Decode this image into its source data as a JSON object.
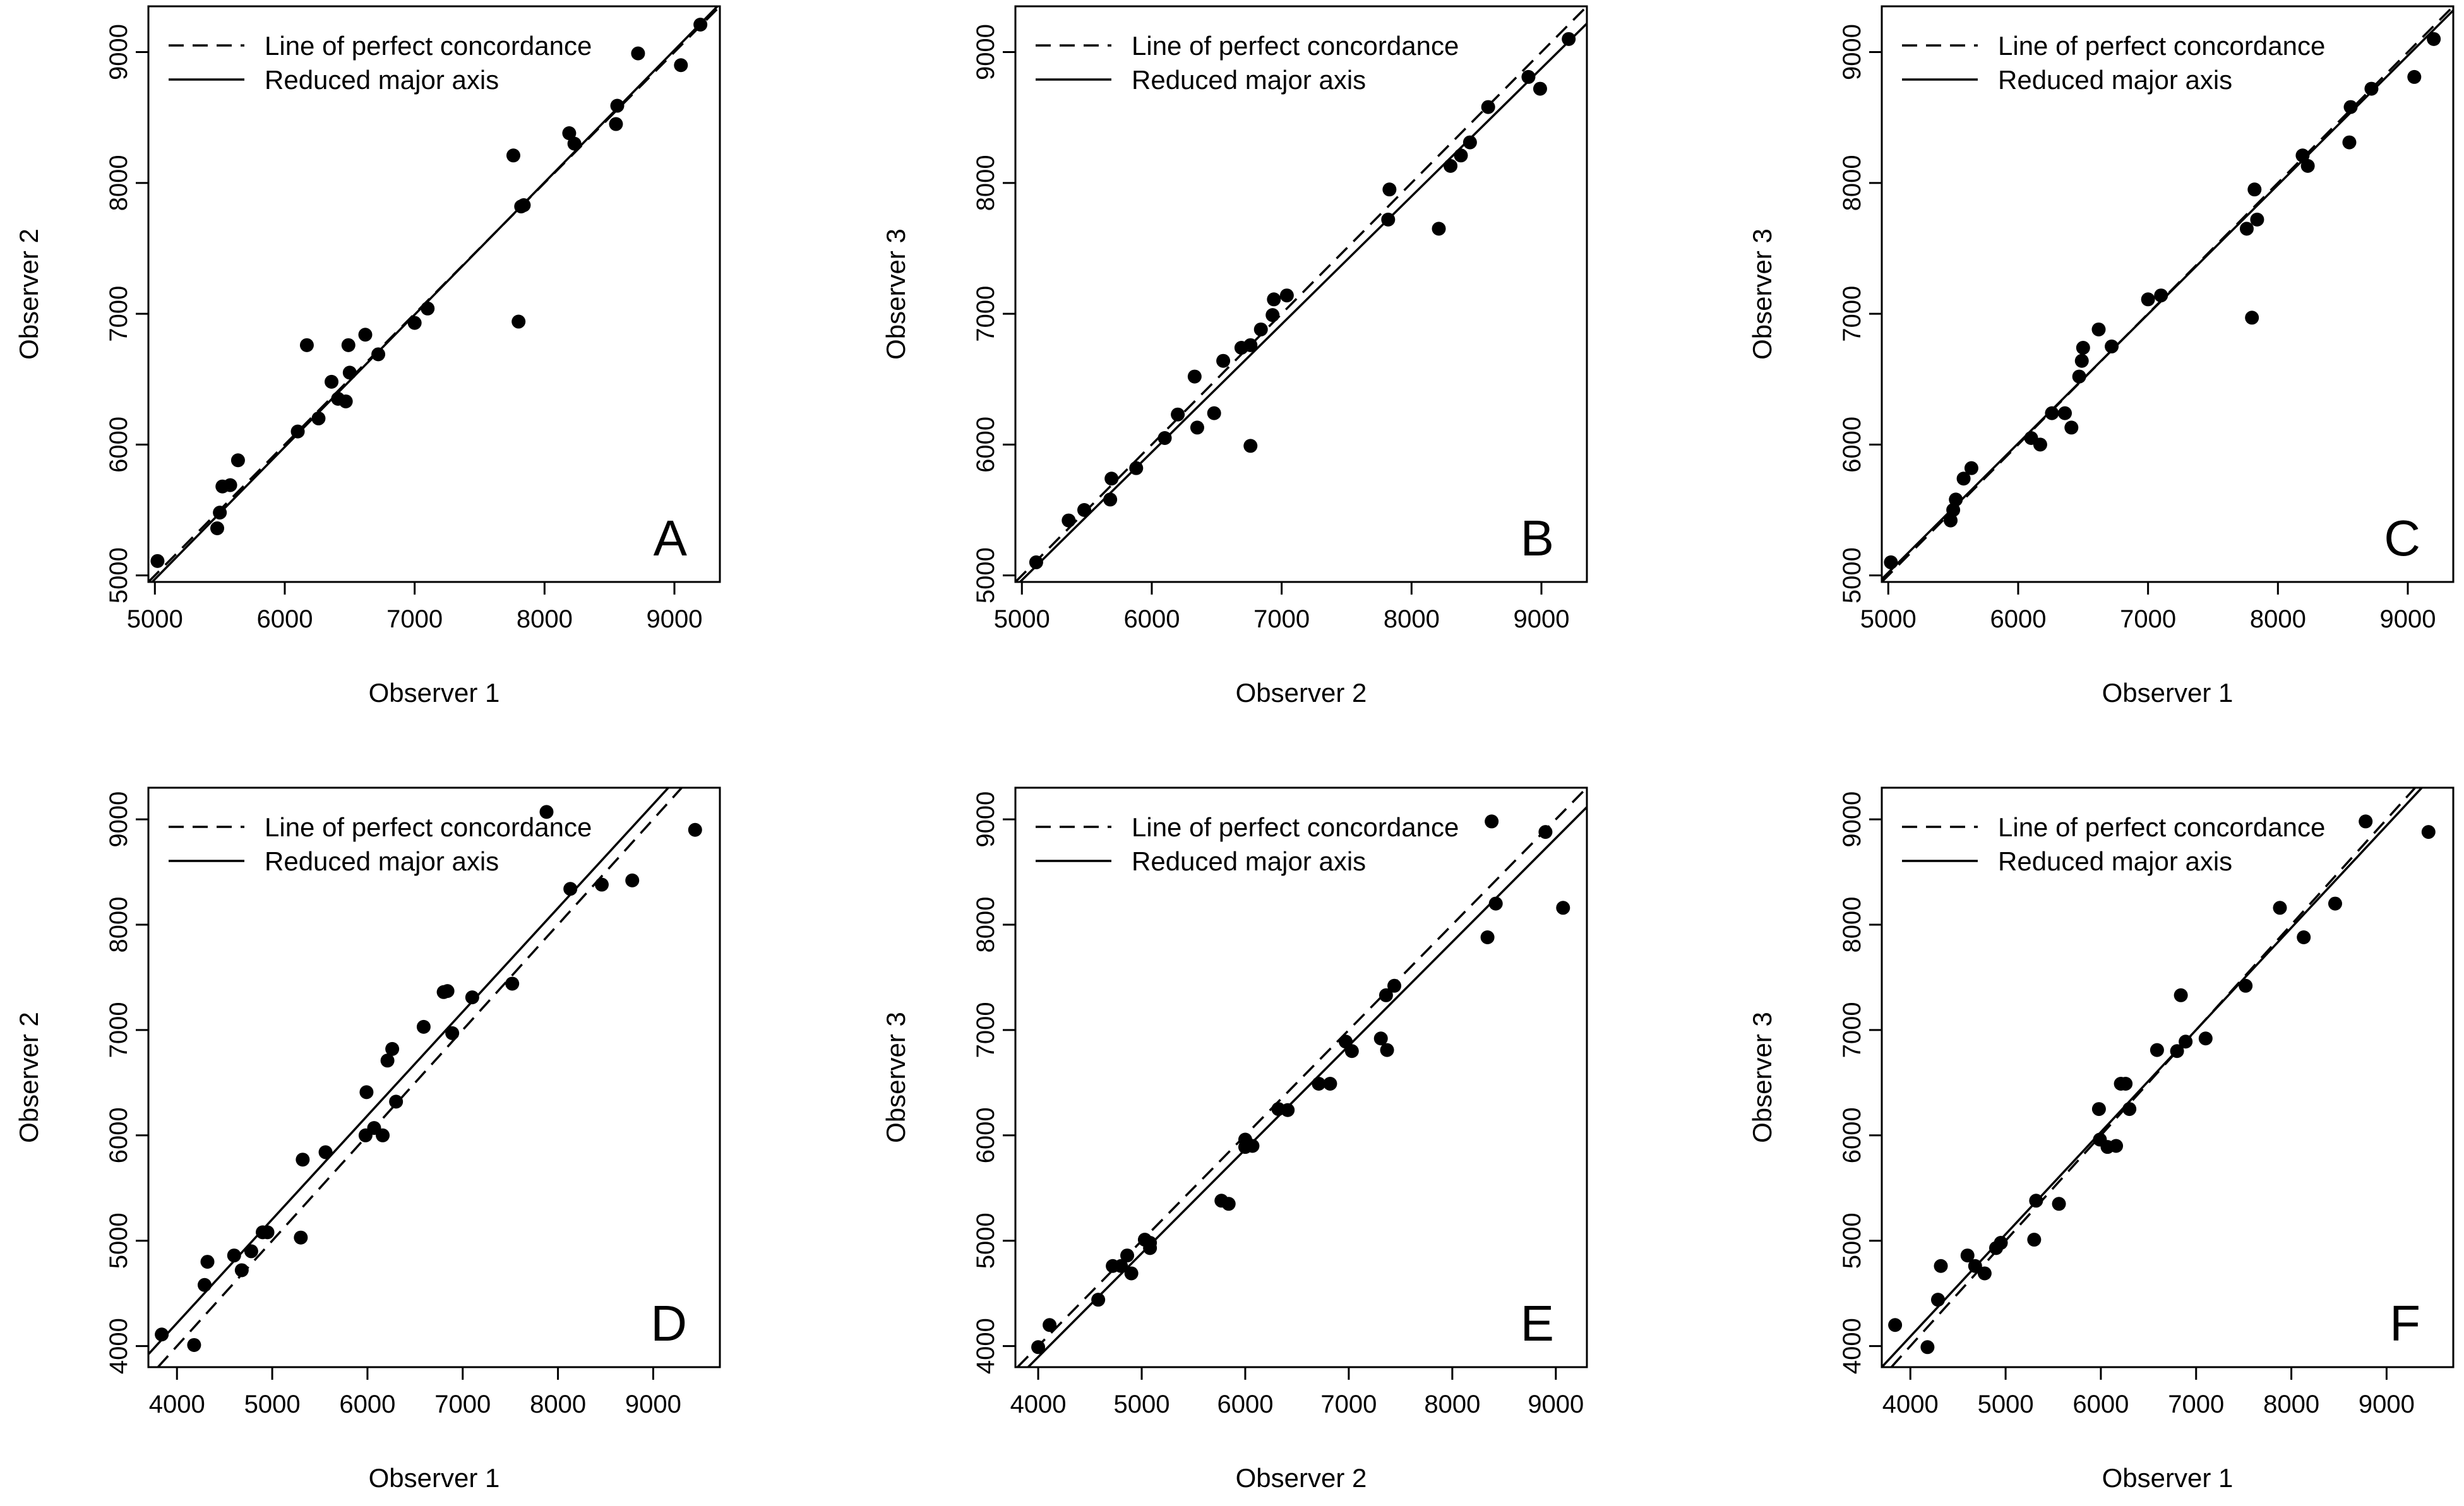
{
  "chart_data": [
    {
      "type": "scatter",
      "panel_label": "A",
      "xlabel": "Observer 1",
      "ylabel": "Observer 2",
      "xlim": [
        4950,
        9350
      ],
      "ylim": [
        4950,
        9350
      ],
      "xticks": [
        5000,
        6000,
        7000,
        8000,
        9000
      ],
      "yticks": [
        5000,
        6000,
        7000,
        8000,
        9000
      ],
      "legend": {
        "position": "top-left",
        "entries": [
          "Line of perfect concordance",
          "Reduced major axis"
        ]
      },
      "reduced_major_axis": {
        "intercept": -84,
        "slope": 1.011
      },
      "points": {
        "x": [
          5020,
          5480,
          5500,
          5520,
          5580,
          5640,
          6100,
          6170,
          6260,
          6360,
          6410,
          6470,
          6490,
          6500,
          6620,
          6720,
          7000,
          7100,
          7760,
          7800,
          7820,
          7840,
          8190,
          8230,
          8550,
          8560,
          8720,
          9050,
          9200
        ],
        "y": [
          5110,
          5360,
          5480,
          5680,
          5690,
          5880,
          6100,
          6760,
          6200,
          6480,
          6350,
          6330,
          6760,
          6550,
          6840,
          6690,
          6930,
          7040,
          8210,
          6940,
          7820,
          7830,
          8380,
          8300,
          8450,
          8590,
          8990,
          8900,
          9210
        ]
      }
    },
    {
      "type": "scatter",
      "panel_label": "B",
      "xlabel": "Observer 2",
      "ylabel": "Observer 3",
      "xlim": [
        4950,
        9350
      ],
      "ylim": [
        4950,
        9350
      ],
      "xticks": [
        5000,
        6000,
        7000,
        8000,
        9000
      ],
      "yticks": [
        5000,
        6000,
        7000,
        8000,
        9000
      ],
      "legend": {
        "position": "top-left",
        "entries": [
          "Line of perfect concordance",
          "Reduced major axis"
        ]
      },
      "reduced_major_axis": {
        "intercept": 74,
        "slope": 0.978
      },
      "points": {
        "x": [
          5110,
          5360,
          5480,
          5680,
          5690,
          5880,
          6100,
          6200,
          6330,
          6350,
          6480,
          6550,
          6690,
          6760,
          6760,
          6840,
          6930,
          6940,
          7040,
          7820,
          7830,
          8210,
          8300,
          8380,
          8450,
          8590,
          8900,
          8990,
          9210
        ],
        "y": [
          5100,
          5420,
          5500,
          5580,
          5740,
          5820,
          6050,
          6230,
          6520,
          6130,
          6240,
          6640,
          6740,
          5990,
          6760,
          6880,
          6990,
          7110,
          7140,
          7720,
          7950,
          7650,
          8130,
          8210,
          8310,
          8580,
          8810,
          8720,
          9100
        ]
      }
    },
    {
      "type": "scatter",
      "panel_label": "C",
      "xlabel": "Observer 1",
      "ylabel": "Observer 3",
      "xlim": [
        4950,
        9350
      ],
      "ylim": [
        4950,
        9350
      ],
      "xticks": [
        5000,
        6000,
        7000,
        8000,
        9000
      ],
      "yticks": [
        5000,
        6000,
        7000,
        8000,
        9000
      ],
      "legend": {
        "position": "top-left",
        "entries": [
          "Line of perfect concordance",
          "Reduced major axis"
        ]
      },
      "reduced_major_axis": {
        "intercept": 81,
        "slope": 0.988
      },
      "points": {
        "x": [
          5020,
          5480,
          5500,
          5520,
          5580,
          5640,
          6100,
          6170,
          6260,
          6360,
          6410,
          6470,
          6490,
          6500,
          6620,
          6720,
          7000,
          7100,
          7760,
          7800,
          7820,
          7840,
          8190,
          8230,
          8550,
          8560,
          8720,
          9050,
          9200
        ],
        "y": [
          5100,
          5420,
          5500,
          5580,
          5740,
          5820,
          6050,
          6000,
          6240,
          6240,
          6130,
          6520,
          6640,
          6740,
          6880,
          6750,
          7110,
          7140,
          7650,
          6970,
          7950,
          7720,
          8210,
          8130,
          8310,
          8580,
          8720,
          8810,
          9100
        ]
      }
    },
    {
      "type": "scatter",
      "panel_label": "D",
      "xlabel": "Observer 1",
      "ylabel": "Observer 2",
      "xlim": [
        3700,
        9700
      ],
      "ylim": [
        3800,
        9300
      ],
      "xticks": [
        4000,
        5000,
        6000,
        7000,
        8000,
        9000
      ],
      "yticks": [
        4000,
        5000,
        6000,
        7000,
        8000,
        9000
      ],
      "legend": {
        "position": "top-left",
        "entries": [
          "Line of perfect concordance",
          "Reduced major axis"
        ]
      },
      "reduced_major_axis": {
        "intercept": 278,
        "slope": 0.985
      },
      "points": {
        "x": [
          3840,
          4180,
          4290,
          4320,
          4600,
          4680,
          4780,
          4900,
          4950,
          5300,
          5320,
          5560,
          5980,
          5990,
          6070,
          6160,
          6210,
          6260,
          6300,
          6590,
          6800,
          6840,
          6890,
          7100,
          7520,
          7880,
          8130,
          8460,
          8780,
          9440
        ],
        "y": [
          4110,
          4010,
          4580,
          4800,
          4860,
          4720,
          4900,
          5080,
          5080,
          5030,
          5770,
          5840,
          6000,
          6410,
          6070,
          6000,
          6710,
          6820,
          6320,
          7030,
          7360,
          7370,
          6970,
          7310,
          7440,
          9070,
          8340,
          8380,
          8420,
          8900
        ]
      }
    },
    {
      "type": "scatter",
      "panel_label": "E",
      "xlabel": "Observer 2",
      "ylabel": "Observer 3",
      "xlim": [
        3780,
        9300
      ],
      "ylim": [
        3800,
        9300
      ],
      "xticks": [
        4000,
        5000,
        6000,
        7000,
        8000,
        9000
      ],
      "yticks": [
        4000,
        5000,
        6000,
        7000,
        8000,
        9000
      ],
      "legend": {
        "position": "top-left",
        "entries": [
          "Line of perfect concordance",
          "Reduced major axis"
        ]
      },
      "reduced_major_axis": {
        "intercept": -44,
        "slope": 0.985
      },
      "points": {
        "x": [
          4000,
          4110,
          4580,
          4720,
          4800,
          4860,
          4900,
          5030,
          5080,
          5080,
          5770,
          5840,
          6000,
          6000,
          6070,
          6320,
          6410,
          6710,
          6820,
          6970,
          7030,
          7310,
          7360,
          7370,
          7440,
          8340,
          8380,
          8420,
          8900,
          9070
        ],
        "y": [
          3990,
          4200,
          4440,
          4760,
          4760,
          4860,
          4690,
          5010,
          4930,
          4980,
          5380,
          5350,
          5890,
          5960,
          5900,
          6250,
          6240,
          6490,
          6490,
          6890,
          6800,
          6920,
          7330,
          6810,
          7420,
          7880,
          8980,
          8200,
          8880,
          8160
        ]
      }
    },
    {
      "type": "scatter",
      "panel_label": "F",
      "xlabel": "Observer 1",
      "ylabel": "Observer 3",
      "xlim": [
        3700,
        9700
      ],
      "ylim": [
        3800,
        9300
      ],
      "xticks": [
        4000,
        5000,
        6000,
        7000,
        8000,
        9000
      ],
      "yticks": [
        4000,
        5000,
        6000,
        7000,
        8000,
        9000
      ],
      "legend": {
        "position": "top-left",
        "entries": [
          "Line of perfect concordance",
          "Reduced major axis"
        ]
      },
      "reduced_major_axis": {
        "intercept": 211,
        "slope": 0.97
      },
      "points": {
        "x": [
          3840,
          4180,
          4290,
          4320,
          4600,
          4680,
          4780,
          4900,
          4950,
          5300,
          5320,
          5560,
          5980,
          5990,
          6070,
          6160,
          6210,
          6260,
          6300,
          6590,
          6800,
          6840,
          6890,
          7100,
          7520,
          7880,
          8130,
          8460,
          8780,
          9440
        ],
        "y": [
          4200,
          3990,
          4440,
          4760,
          4860,
          4760,
          4690,
          4930,
          4980,
          5010,
          5380,
          5350,
          6250,
          5960,
          5890,
          5900,
          6490,
          6490,
          6250,
          6810,
          6800,
          7330,
          6890,
          6920,
          7420,
          8160,
          7880,
          8200,
          8980,
          8880
        ]
      }
    }
  ]
}
